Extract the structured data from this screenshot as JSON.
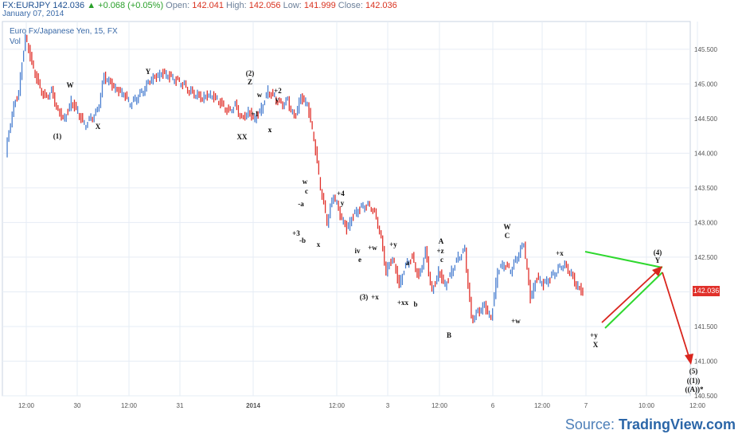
{
  "header": {
    "symbol": "FX:EURJPY",
    "last": "142.036",
    "change": "+0.068 (+0.05%)",
    "open_label": "Open:",
    "open": "142.041",
    "high_label": "High:",
    "high": "142.056",
    "low_label": "Low:",
    "low": "141.999",
    "close_label": "Close:",
    "close": "142.036",
    "date": "January 07, 2014"
  },
  "chart_title": "Euro Fx/Japanese Yen, 15, FX",
  "vol_label": "Vol",
  "price_badge": "142.036",
  "source_prefix": "Source: ",
  "source_name": "TradingView.com",
  "colors": {
    "up": "#4a7fd0",
    "down": "#e0302a",
    "grid": "#e6ecf5",
    "projection_green": "#2ed82e",
    "projection_red": "#d9251d"
  },
  "chart_data": {
    "type": "line",
    "title": "Euro Fx/Japanese Yen, 15, FX",
    "ylim": [
      140.5,
      145.9
    ],
    "yticks": [
      "145.500",
      "145.000",
      "144.500",
      "144.000",
      "143.500",
      "143.000",
      "142.500",
      "142.000",
      "141.500",
      "141.000",
      "140.500"
    ],
    "xticks": [
      "12:00",
      "30",
      "12:00",
      "31",
      "2014",
      "12:00",
      "3",
      "12:00",
      "6",
      "12:00",
      "7",
      "10:00",
      "12:00"
    ],
    "price_series": [
      [
        0,
        144.0
      ],
      [
        1,
        144.6
      ],
      [
        2,
        144.9
      ],
      [
        3,
        145.7
      ],
      [
        4,
        145.3
      ],
      [
        5,
        145.0
      ],
      [
        6,
        144.8
      ],
      [
        7,
        144.9
      ],
      [
        8,
        144.6
      ],
      [
        9,
        144.5
      ],
      [
        10,
        144.75
      ],
      [
        11,
        144.6
      ],
      [
        12,
        144.4
      ],
      [
        13,
        144.5
      ],
      [
        14,
        144.6
      ],
      [
        15,
        145.1
      ],
      [
        16,
        145.0
      ],
      [
        17,
        144.9
      ],
      [
        18,
        144.85
      ],
      [
        19,
        144.7
      ],
      [
        20,
        144.8
      ],
      [
        21,
        144.9
      ],
      [
        22,
        145.05
      ],
      [
        23,
        145.1
      ],
      [
        24,
        145.15
      ],
      [
        25,
        145.1
      ],
      [
        26,
        145.05
      ],
      [
        27,
        145.0
      ],
      [
        28,
        144.9
      ],
      [
        29,
        144.85
      ],
      [
        30,
        144.8
      ],
      [
        31,
        144.85
      ],
      [
        32,
        144.8
      ],
      [
        33,
        144.7
      ],
      [
        34,
        144.6
      ],
      [
        35,
        144.7
      ],
      [
        36,
        144.5
      ],
      [
        37,
        144.6
      ],
      [
        38,
        144.5
      ],
      [
        39,
        144.65
      ],
      [
        40,
        144.9
      ],
      [
        41,
        144.8
      ],
      [
        42,
        144.7
      ],
      [
        43,
        144.75
      ],
      [
        44,
        144.5
      ],
      [
        45,
        144.8
      ],
      [
        46,
        144.7
      ],
      [
        47,
        144.2
      ],
      [
        48,
        143.5
      ],
      [
        49,
        143.0
      ],
      [
        50,
        143.4
      ],
      [
        51,
        143.1
      ],
      [
        52,
        142.9
      ],
      [
        53,
        143.1
      ],
      [
        54,
        143.2
      ],
      [
        55,
        143.25
      ],
      [
        56,
        143.2
      ],
      [
        57,
        142.9
      ],
      [
        58,
        142.3
      ],
      [
        59,
        142.5
      ],
      [
        60,
        142.1
      ],
      [
        61,
        142.4
      ],
      [
        62,
        142.5
      ],
      [
        63,
        142.2
      ],
      [
        64,
        142.6
      ],
      [
        65,
        142.0
      ],
      [
        66,
        142.3
      ],
      [
        67,
        142.1
      ],
      [
        68,
        142.3
      ],
      [
        69,
        142.5
      ],
      [
        70,
        142.6
      ],
      [
        71,
        141.6
      ],
      [
        72,
        141.7
      ],
      [
        73,
        141.8
      ],
      [
        74,
        141.6
      ],
      [
        75,
        142.3
      ],
      [
        76,
        142.4
      ],
      [
        77,
        142.3
      ],
      [
        78,
        142.5
      ],
      [
        79,
        142.7
      ],
      [
        80,
        141.9
      ],
      [
        81,
        142.2
      ],
      [
        82,
        142.1
      ],
      [
        83,
        142.2
      ],
      [
        84,
        142.3
      ],
      [
        85,
        142.4
      ],
      [
        86,
        142.3
      ],
      [
        87,
        142.1
      ],
      [
        88,
        142.0
      ]
    ],
    "wave_labels": [
      "(1)",
      "W",
      "X",
      "Y",
      "(2)",
      "Z",
      "w",
      "x",
      "y",
      "+1",
      "+2",
      "x",
      "XX",
      "w",
      "c",
      "-a",
      "+3",
      "-b",
      "x",
      "+4",
      "y",
      "iv",
      "e",
      "+w",
      "(3)",
      "+x",
      "+y",
      "a",
      "+xx",
      "b",
      "A",
      "+z",
      "c",
      "B",
      "W",
      "C",
      "+w",
      "+x",
      "(4)",
      "Y",
      "+y",
      "X",
      "(5)",
      "((1))",
      "((A))*"
    ]
  }
}
